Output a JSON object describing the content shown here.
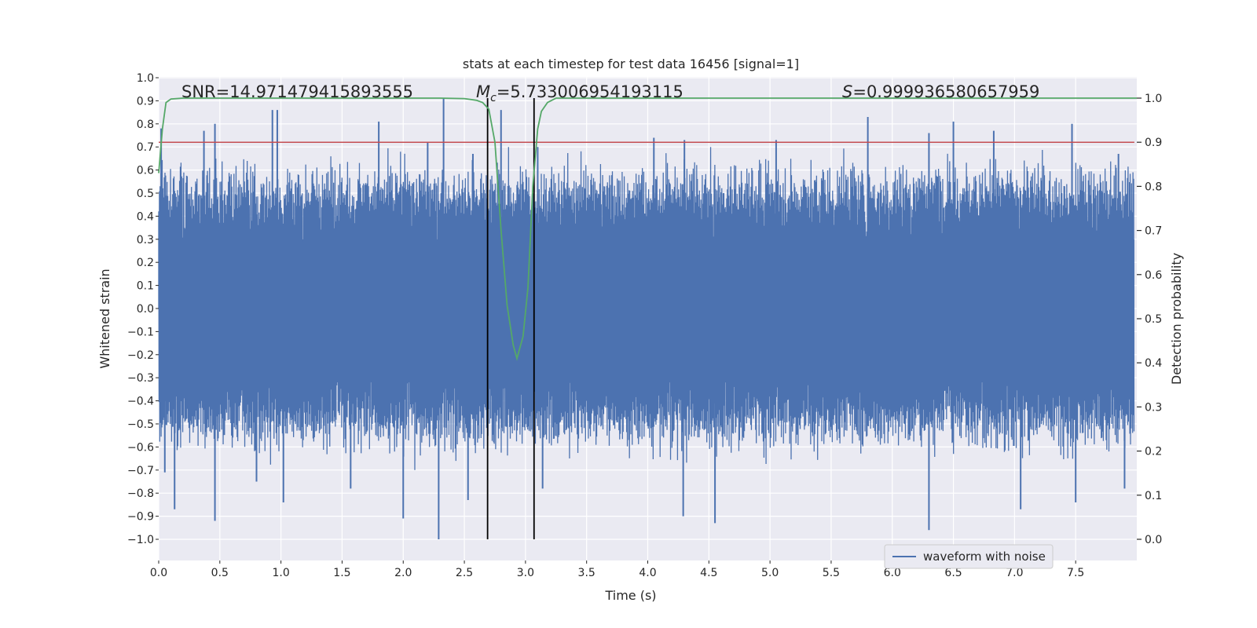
{
  "chart_data": {
    "type": "line",
    "title": "stats at each timestep for test data 16456 [signal=1]",
    "xlabel": "Time (s)",
    "ylabel_left": "Whitened strain",
    "ylabel_right": "Detection probability",
    "xlim": [
      0.0,
      8.0
    ],
    "ylim_left": [
      -1.09,
      1.0
    ],
    "ylim_right": [
      0.0,
      1.0
    ],
    "x_ticks": [
      "0.0",
      "0.5",
      "1.0",
      "1.5",
      "2.0",
      "2.5",
      "3.0",
      "3.5",
      "4.0",
      "4.5",
      "5.0",
      "5.5",
      "6.0",
      "6.5",
      "7.0",
      "7.5"
    ],
    "y_left_ticks": [
      "1.0",
      "0.9",
      "0.8",
      "0.7",
      "0.6",
      "0.5",
      "0.4",
      "0.3",
      "0.2",
      "0.1",
      "0.0",
      "−0.1",
      "−0.2",
      "−0.3",
      "−0.4",
      "−0.5",
      "−0.6",
      "−0.7",
      "−0.8",
      "−0.9",
      "−1.0"
    ],
    "y_right_ticks": [
      "1.0",
      "0.9",
      "0.8",
      "0.7",
      "0.6",
      "0.5",
      "0.4",
      "0.3",
      "0.2",
      "0.1",
      "0.0"
    ],
    "annotations": {
      "snr": "SNR=14.971479415893555",
      "mc_symbol": "M",
      "mc_sub": "c",
      "mc_value": "=5.733006954193115",
      "s_symbol": "S",
      "s_value": "=0.999936580657959"
    },
    "series": [
      {
        "name": "waveform with noise",
        "axis": "left",
        "color": "#4c72b0",
        "description": "dense noisy whitened strain time series, envelope approx ±0.5 with spikes to ±1.0",
        "peaks_positive": [
          [
            0.02,
            0.78
          ],
          [
            0.37,
            0.77
          ],
          [
            0.46,
            0.8
          ],
          [
            0.93,
            0.86
          ],
          [
            0.97,
            0.86
          ],
          [
            1.8,
            0.81
          ],
          [
            2.2,
            0.72
          ],
          [
            2.33,
            0.91
          ],
          [
            2.57,
            0.67
          ],
          [
            2.8,
            0.86
          ],
          [
            3.1,
            0.7
          ],
          [
            4.05,
            0.74
          ],
          [
            4.3,
            0.73
          ],
          [
            5.05,
            0.73
          ],
          [
            5.8,
            0.83
          ],
          [
            6.3,
            0.76
          ],
          [
            6.5,
            0.81
          ],
          [
            6.83,
            0.77
          ],
          [
            7.47,
            0.8
          ],
          [
            7.85,
            0.67
          ]
        ],
        "peaks_negative": [
          [
            0.05,
            -0.71
          ],
          [
            0.13,
            -0.87
          ],
          [
            0.46,
            -0.92
          ],
          [
            0.8,
            -0.75
          ],
          [
            1.02,
            -0.84
          ],
          [
            1.57,
            -0.78
          ],
          [
            2.0,
            -0.91
          ],
          [
            2.29,
            -1.0
          ],
          [
            2.53,
            -0.83
          ],
          [
            3.14,
            -0.78
          ],
          [
            4.29,
            -0.9
          ],
          [
            4.55,
            -0.93
          ],
          [
            6.3,
            -0.96
          ],
          [
            7.05,
            -0.87
          ],
          [
            7.5,
            -0.84
          ],
          [
            7.9,
            -0.78
          ]
        ]
      },
      {
        "name": "detection probability",
        "axis": "right",
        "color": "#55a868",
        "x": [
          0.0,
          0.03,
          0.06,
          0.1,
          0.2,
          0.5,
          1.0,
          1.5,
          2.0,
          2.3,
          2.5,
          2.6,
          2.65,
          2.7,
          2.75,
          2.8,
          2.85,
          2.9,
          2.93,
          2.98,
          3.02,
          3.06,
          3.1,
          3.13,
          3.18,
          3.25,
          3.3,
          3.5,
          4.0,
          5.0,
          6.0,
          7.0,
          8.0
        ],
        "y": [
          0.83,
          0.93,
          0.99,
          0.998,
          1.0,
          1.0,
          1.0,
          1.0,
          1.0,
          1.0,
          0.999,
          0.995,
          0.99,
          0.975,
          0.9,
          0.7,
          0.53,
          0.44,
          0.41,
          0.46,
          0.57,
          0.8,
          0.93,
          0.97,
          0.99,
          1.0,
          1.0,
          1.0,
          1.0,
          1.0,
          1.0,
          1.0,
          1.0
        ]
      }
    ],
    "threshold": {
      "axis": "right",
      "value": 0.9,
      "color": "#c44e52"
    },
    "vlines_s": [
      2.69,
      3.07
    ],
    "legend": {
      "location": "lower-right",
      "entries": [
        "waveform with noise"
      ]
    }
  }
}
